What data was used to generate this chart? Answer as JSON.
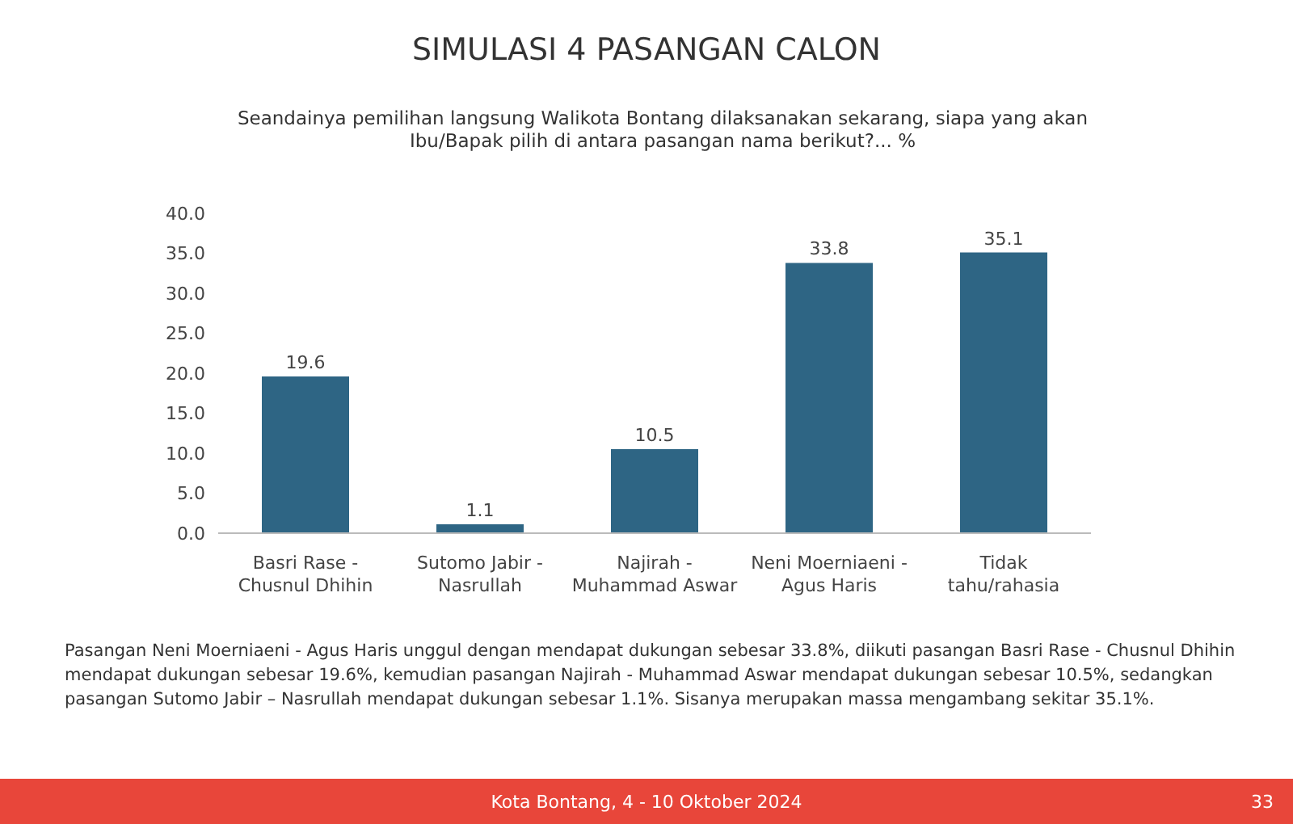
{
  "chart_data": {
    "type": "bar",
    "title": "SIMULASI 4 PASANGAN CALON",
    "subtitle": "Seandainya pemilihan langsung Walikota Bontang dilaksanakan sekarang, siapa yang akan Ibu/Bapak pilih di antara pasangan nama berikut?... %",
    "categories": [
      "Basri Rase - Chusnul Dhihin",
      "Sutomo Jabir - Nasrullah",
      "Najirah - Muhammad Aswar",
      "Neni Moerniaeni - Agus Haris",
      "Tidak tahu/rahasia"
    ],
    "values": [
      19.6,
      1.1,
      10.5,
      33.8,
      35.1
    ],
    "color": "#2e6584",
    "ylim": [
      0,
      40
    ],
    "yticks": [
      {
        "value": 0,
        "label": "0.0"
      },
      {
        "value": 5,
        "label": "5.0"
      },
      {
        "value": 10,
        "label": "10.0"
      },
      {
        "value": 15,
        "label": "15.0"
      },
      {
        "value": 20,
        "label": "20.0"
      },
      {
        "value": 25,
        "label": "25.0"
      },
      {
        "value": 30,
        "label": "30.0"
      },
      {
        "value": 35,
        "label": "35.0"
      },
      {
        "value": 40,
        "label": "40.0"
      }
    ],
    "grid": false,
    "data_labels": true,
    "annotations": [
      "Pasangan Neni Moerniaeni - Agus Haris unggul dengan mendapat dukungan sebesar 33.8%, diikuti pasangan Basri Rase - Chusnul Dhihin mendapat dukungan sebesar 19.6%, kemudian pasangan Najirah - Muhammad Aswar mendapat dukungan sebesar 10.5%, sedangkan pasangan Sutomo Jabir – Nasrullah mendapat dukungan sebesar 1.1%. Sisanya merupakan massa mengambang sekitar 35.1%.",
      "Kota Bontang, 4 - 10 Oktober 2024",
      "33"
    ]
  }
}
